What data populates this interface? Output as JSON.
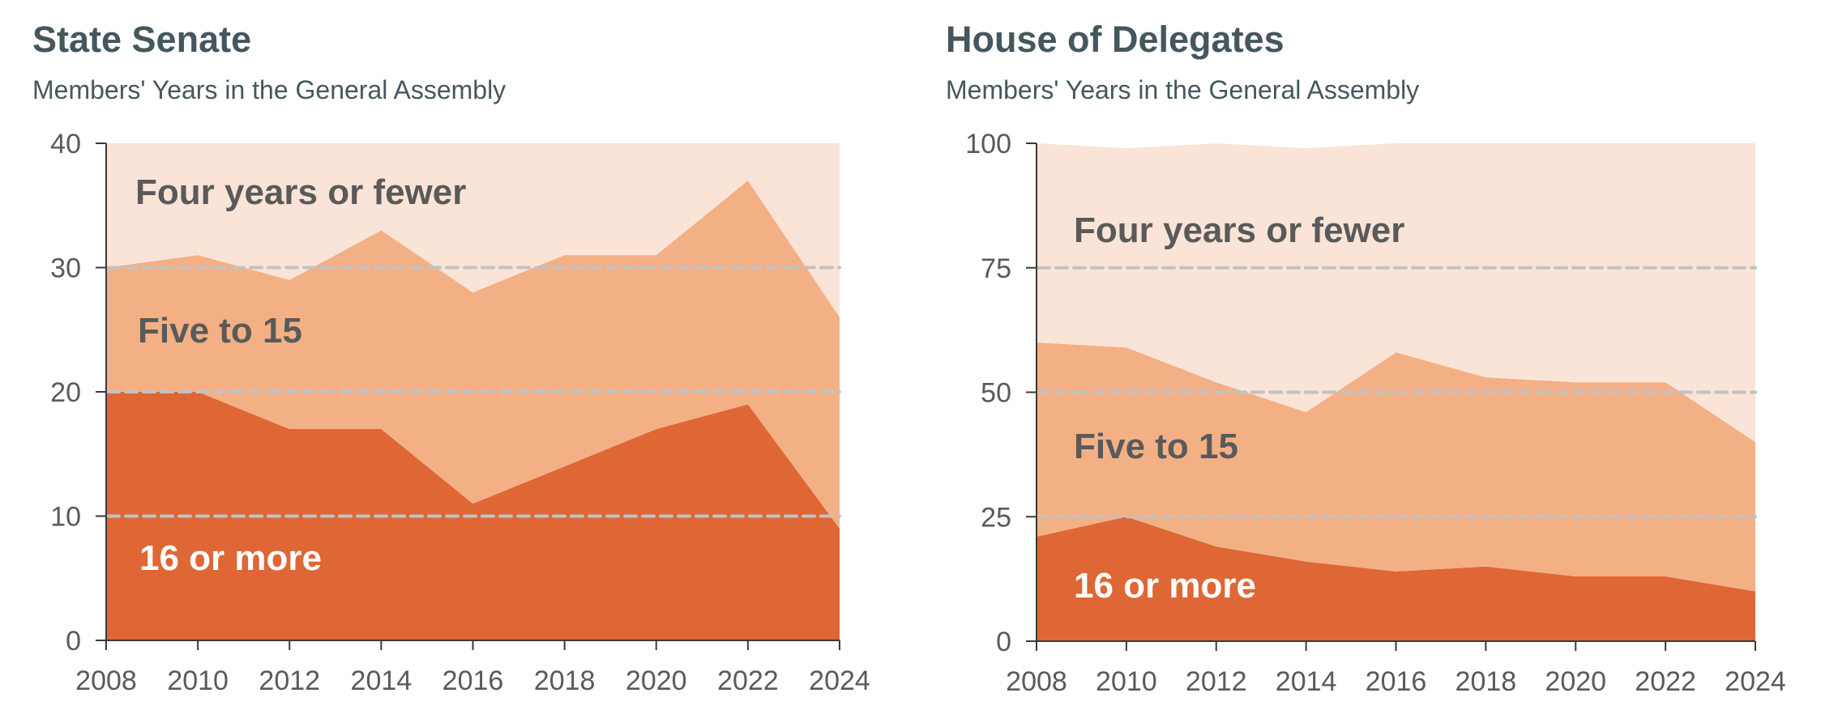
{
  "chart_data": [
    {
      "type": "area",
      "stacked": true,
      "title": "State Senate",
      "subtitle": "Members' Years in the General Assembly",
      "xlabel": "",
      "ylabel": "",
      "x": [
        2008,
        2010,
        2012,
        2014,
        2016,
        2018,
        2020,
        2022,
        2024
      ],
      "x_tick_labels": [
        "2008",
        "2010",
        "2012",
        "2014",
        "2016",
        "2018",
        "2020",
        "2022",
        "2024"
      ],
      "ylim": [
        0,
        40
      ],
      "y_ticks": [
        0,
        10,
        20,
        30,
        40
      ],
      "y_tick_labels": [
        "0",
        "10",
        "20",
        "30",
        "40"
      ],
      "gridlines": [
        10,
        20,
        30
      ],
      "grid": "dashed horizontal",
      "legend": "inline labels",
      "series": [
        {
          "name": "16 or more",
          "color": "#df6735",
          "label_color": "#ffffff",
          "values": [
            20,
            20,
            17,
            17,
            11,
            14,
            17,
            19,
            9
          ]
        },
        {
          "name": "Five to 15",
          "color": "#f3b085",
          "label_color": "#5a5a5a",
          "values": [
            10,
            11,
            12,
            16,
            17,
            17,
            14,
            18,
            17
          ]
        },
        {
          "name": "Four years or fewer",
          "color": "#fae4d7",
          "label_color": "#5a5a5a",
          "values": [
            10,
            9,
            11,
            7,
            12,
            9,
            9,
            3,
            14
          ]
        }
      ]
    },
    {
      "type": "area",
      "stacked": true,
      "title": "House of Delegates",
      "subtitle": "Members' Years in the General Assembly",
      "xlabel": "",
      "ylabel": "",
      "x": [
        2008,
        2010,
        2012,
        2014,
        2016,
        2018,
        2020,
        2022,
        2024
      ],
      "x_tick_labels": [
        "2008",
        "2010",
        "2012",
        "2014",
        "2016",
        "2018",
        "2020",
        "2022",
        "2024"
      ],
      "ylim": [
        0,
        100
      ],
      "y_ticks": [
        0,
        25,
        50,
        75,
        100
      ],
      "y_tick_labels": [
        "0",
        "25",
        "50",
        "75",
        "100"
      ],
      "gridlines": [
        25,
        50,
        75
      ],
      "grid": "dashed horizontal",
      "legend": "inline labels",
      "series": [
        {
          "name": "16 or more",
          "color": "#df6735",
          "label_color": "#ffffff",
          "values": [
            21,
            25,
            19,
            16,
            14,
            15,
            13,
            13,
            10
          ]
        },
        {
          "name": "Five to 15",
          "color": "#f3b085",
          "label_color": "#5a5a5a",
          "values": [
            39,
            34,
            33,
            30,
            44,
            38,
            39,
            39,
            30
          ]
        },
        {
          "name": "Four years or fewer",
          "color": "#fae4d7",
          "label_color": "#5a5a5a",
          "values": [
            40,
            40,
            48,
            53,
            42,
            47,
            48,
            48,
            60
          ]
        }
      ]
    }
  ]
}
